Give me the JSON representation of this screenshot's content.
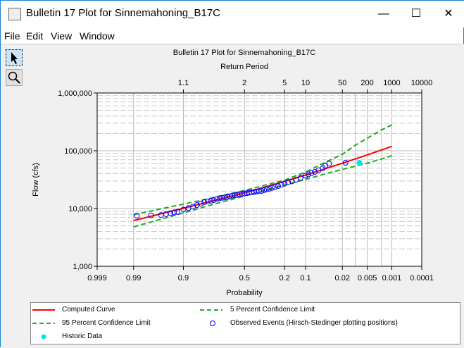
{
  "window": {
    "title": "Bulletin 17 Plot for Sinnemahoning_B17C",
    "minimize": "—",
    "maximize": "☐",
    "close": "✕"
  },
  "menu": [
    "File",
    "Edit",
    "View",
    "Window"
  ],
  "toolbar": {
    "tools": [
      {
        "icon": "pointer-arrow-icon",
        "selected": true
      },
      {
        "icon": "zoom-magnifier-icon",
        "selected": false
      }
    ]
  },
  "colors": {
    "computed": "#ff0000",
    "confidence": "#22aa22",
    "observed": "#0000ff",
    "historic": "#00e5ee"
  },
  "chart_data": {
    "type": "line",
    "title": "Bulletin 17 Plot for Sinnemahoning_B17C",
    "top_axis_label": "Return Period",
    "xlabel": "Probability",
    "ylabel": "Flow (cfs)",
    "x_scale": "normal-probability (reversed exceedance)",
    "y_scale": "log",
    "xlim": [
      0.999,
      0.0001
    ],
    "ylim": [
      1000,
      1000000
    ],
    "x_ticks": [
      "0.999",
      "0.99",
      "0.9",
      "0.5",
      "0.2",
      "0.1",
      "0.02",
      "0.005",
      "0.001",
      "0.0001"
    ],
    "x_tick_values": [
      0.999,
      0.99,
      0.9,
      0.5,
      0.2,
      0.1,
      0.02,
      0.005,
      0.001,
      0.0001
    ],
    "x_grid_values": [
      0.99,
      0.9,
      0.5,
      0.2,
      0.1,
      0.02,
      0.01,
      0.005,
      0.002,
      0.001
    ],
    "top_ticks": [
      "1.1",
      "2",
      "5",
      "10",
      "50",
      "200",
      "1000",
      "10000"
    ],
    "top_tick_probs": [
      0.9,
      0.5,
      0.2,
      0.1,
      0.02,
      0.005,
      0.001,
      0.0001
    ],
    "y_ticks": [
      "1,000",
      "10,000",
      "100,000",
      "1,000,000"
    ],
    "y_tick_values": [
      1000,
      10000,
      100000,
      1000000
    ],
    "grid": true,
    "legend_position": "bottom",
    "series": [
      {
        "name": "Computed Curve",
        "style": "solid",
        "color": "#ff0000",
        "x": [
          0.99,
          0.95,
          0.9,
          0.8,
          0.5,
          0.2,
          0.1,
          0.04,
          0.02,
          0.01,
          0.005,
          0.002,
          0.001
        ],
        "y": [
          6180,
          8530,
          10100,
          12500,
          18600,
          29600,
          38100,
          50600,
          60800,
          72300,
          84800,
          103500,
          119000
        ]
      },
      {
        "name": "5 Percent Confidence Limit",
        "style": "dashed",
        "color": "#22aa22",
        "x": [
          0.99,
          0.95,
          0.9,
          0.8,
          0.5,
          0.2,
          0.1,
          0.04,
          0.02,
          0.01,
          0.005,
          0.002,
          0.001
        ],
        "y": [
          7800,
          10300,
          11900,
          14300,
          20500,
          31000,
          43000,
          66500,
          87000,
          125000,
          165000,
          230000,
          280000
        ]
      },
      {
        "name": "95 Percent Confidence Limit",
        "style": "dashed",
        "color": "#22aa22",
        "x": [
          0.99,
          0.95,
          0.9,
          0.8,
          0.5,
          0.2,
          0.1,
          0.04,
          0.02,
          0.01,
          0.005,
          0.002,
          0.001
        ],
        "y": [
          4800,
          6900,
          8400,
          10700,
          16500,
          25500,
          32000,
          41000,
          47500,
          54000,
          61000,
          72000,
          82000
        ]
      },
      {
        "name": "Observed Events (Hirsch-Stedinger plotting positions)",
        "style": "open-circle",
        "color": "#0000ff",
        "x": [
          0.988,
          0.975,
          0.96,
          0.95,
          0.94,
          0.93,
          0.92,
          0.9,
          0.88,
          0.86,
          0.84,
          0.82,
          0.8,
          0.78,
          0.76,
          0.74,
          0.72,
          0.7,
          0.68,
          0.66,
          0.64,
          0.62,
          0.6,
          0.58,
          0.56,
          0.54,
          0.52,
          0.5,
          0.48,
          0.46,
          0.44,
          0.42,
          0.4,
          0.38,
          0.36,
          0.34,
          0.32,
          0.3,
          0.28,
          0.26,
          0.24,
          0.22,
          0.2,
          0.18,
          0.16,
          0.14,
          0.12,
          0.1,
          0.09,
          0.08,
          0.07,
          0.06,
          0.05,
          0.045,
          0.038,
          0.017
        ],
        "y": [
          7500,
          7600,
          7700,
          8000,
          8300,
          8600,
          8700,
          9600,
          10200,
          10800,
          11500,
          12200,
          12900,
          13300,
          13600,
          14000,
          14600,
          15000,
          15300,
          15500,
          15800,
          16300,
          16800,
          17000,
          17200,
          17600,
          18000,
          18200,
          18500,
          18900,
          19100,
          19300,
          19700,
          20000,
          20200,
          20800,
          21500,
          22000,
          22800,
          23600,
          24500,
          25800,
          27000,
          28500,
          29500,
          31500,
          34000,
          37000,
          39000,
          41000,
          43000,
          46000,
          50000,
          55000,
          60000,
          62000
        ]
      },
      {
        "name": "Historic Data",
        "style": "filled-circle",
        "color": "#00e5ee",
        "x": [
          0.008
        ],
        "y": [
          62000
        ]
      }
    ]
  }
}
